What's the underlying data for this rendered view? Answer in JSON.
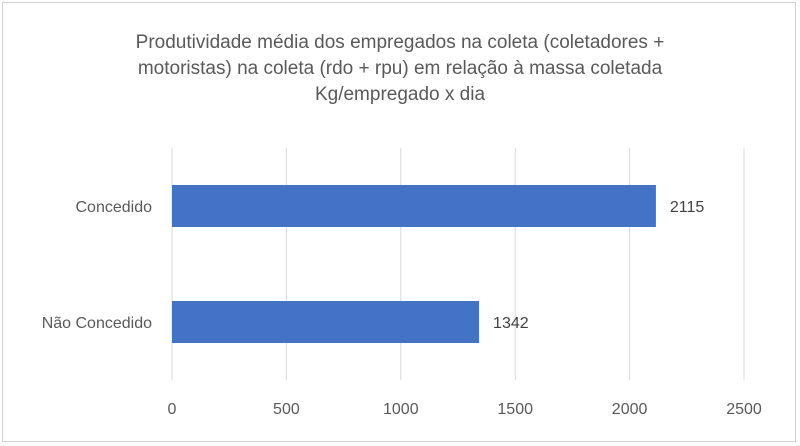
{
  "chart_data": {
    "type": "bar",
    "orientation": "horizontal",
    "title_lines": [
      "Produtividade média dos empregados na coleta (coletadores +",
      "motoristas) na coleta (rdo + rpu) em relação à massa coletada",
      "Kg/empregado  x dia"
    ],
    "categories": [
      "Concedido",
      "Não Concedido"
    ],
    "values": [
      2115,
      1342
    ],
    "xlim": [
      0,
      2500
    ],
    "xticks": [
      0,
      500,
      1000,
      1500,
      2000,
      2500
    ],
    "grid": true,
    "legend": "none",
    "bar_color": "#4472c4"
  }
}
